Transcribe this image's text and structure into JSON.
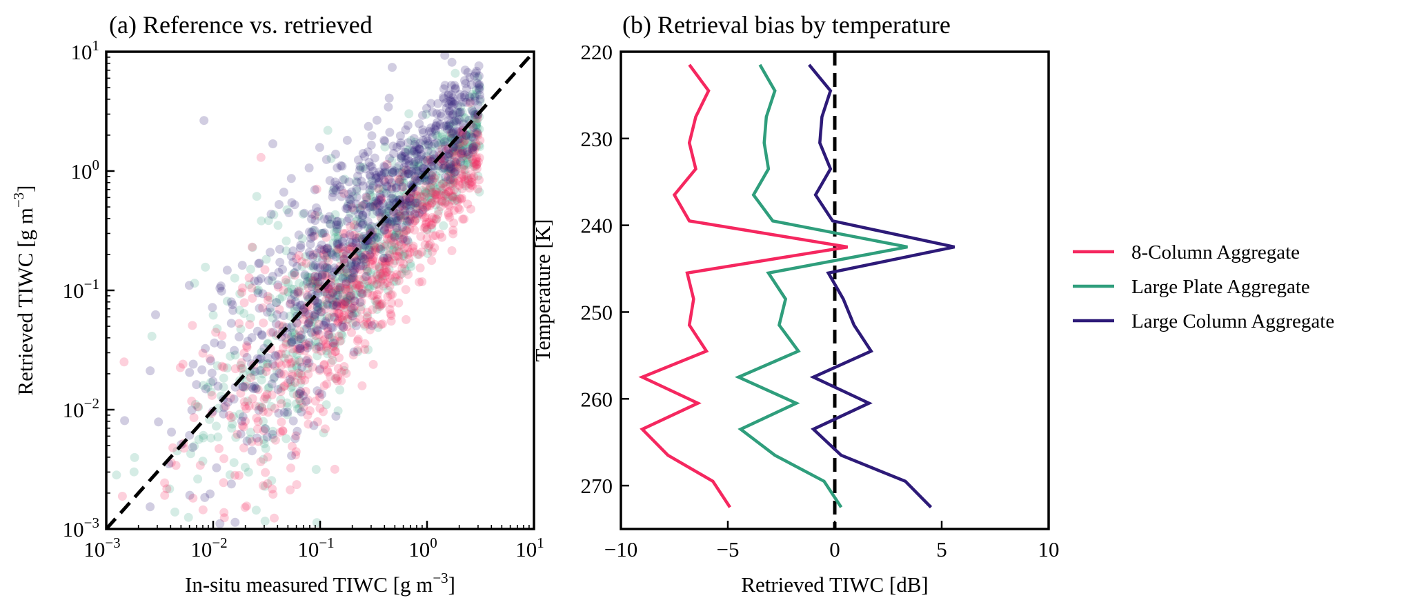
{
  "chart_data": [
    {
      "type": "scatter",
      "title": "(a) Reference vs. retrieved",
      "xlabel": {
        "text": "In-situ measured TIWC [g m",
        "sup": "−3",
        "close": "]"
      },
      "ylabel": {
        "text": "Retrieved TIWC [g m",
        "sup": "−3",
        "close": "]"
      },
      "xscale": "log",
      "yscale": "log",
      "xlim": [
        0.001,
        10
      ],
      "ylim": [
        0.001,
        10
      ],
      "xticks": [
        {
          "base": "10",
          "exp": "−3",
          "value": -3
        },
        {
          "base": "10",
          "exp": "−2",
          "value": -2
        },
        {
          "base": "10",
          "exp": "−1",
          "value": -1
        },
        {
          "base": "10",
          "exp": "0",
          "value": 0
        },
        {
          "base": "10",
          "exp": "1",
          "value": 1
        }
      ],
      "yticks": [
        {
          "base": "10",
          "exp": "−3",
          "value": -3
        },
        {
          "base": "10",
          "exp": "−2",
          "value": -2
        },
        {
          "base": "10",
          "exp": "−1",
          "value": -1
        },
        {
          "base": "10",
          "exp": "0",
          "value": 0
        },
        {
          "base": "10",
          "exp": "1",
          "value": 1
        }
      ],
      "reference_line": "1:1 dashed",
      "series": [
        {
          "name": "8-Column Aggregate",
          "color": "#f5275f",
          "log_bias": -0.35,
          "alpha": 0.22
        },
        {
          "name": "Large Plate Aggregate",
          "color": "#2f9e7c",
          "log_bias": -0.12,
          "alpha": 0.2
        },
        {
          "name": "Large Column Aggregate",
          "color": "#2d1a78",
          "log_bias": 0.15,
          "alpha": 0.22
        }
      ],
      "grid": false
    },
    {
      "type": "line",
      "title": "(b) Retrieval bias by temperature",
      "xlabel": "Retrieved TIWC [dB]",
      "ylabel": "Temperature [K]",
      "xlim": [
        -10,
        10
      ],
      "ylim": [
        275,
        220
      ],
      "y_inverted": true,
      "xticks": [
        "−10",
        "−5",
        "0",
        "5",
        "10"
      ],
      "xtick_values": [
        -10,
        -5,
        0,
        5,
        10
      ],
      "yticks": [
        "220",
        "230",
        "240",
        "250",
        "260",
        "270"
      ],
      "ytick_values": [
        220,
        230,
        240,
        250,
        260,
        270
      ],
      "vline": 0,
      "temperature": [
        221.5,
        224.5,
        227.5,
        230.5,
        233.5,
        236.5,
        239.5,
        242.5,
        245.5,
        248.5,
        251.5,
        254.5,
        257.5,
        260.5,
        263.5,
        266.5,
        269.5,
        272.5
      ],
      "series": [
        {
          "name": "8-Column Aggregate",
          "color": "#f5275f",
          "values": [
            -6.8,
            -5.9,
            -6.5,
            -6.8,
            -6.5,
            -7.5,
            -6.8,
            0.6,
            -6.9,
            -6.6,
            -6.8,
            -6.0,
            -9.0,
            -6.4,
            -9.0,
            -7.8,
            -5.7,
            -4.9
          ]
        },
        {
          "name": "Large Plate Aggregate",
          "color": "#2f9e7c",
          "values": [
            -3.5,
            -2.8,
            -3.2,
            -3.3,
            -3.1,
            -3.8,
            -2.9,
            3.4,
            -3.1,
            -2.3,
            -2.6,
            -1.7,
            -4.5,
            -1.8,
            -4.4,
            -2.8,
            -0.5,
            0.3
          ]
        },
        {
          "name": "Large Column Aggregate",
          "color": "#2d1a78",
          "values": [
            -1.2,
            -0.2,
            -0.6,
            -0.7,
            -0.2,
            -0.9,
            -0.1,
            5.6,
            -0.3,
            0.4,
            0.9,
            1.7,
            -1.0,
            1.6,
            -1.0,
            0.3,
            3.3,
            4.5
          ]
        }
      ],
      "grid": false
    }
  ],
  "legend": {
    "placement": "right-center",
    "entries": [
      {
        "label": "8-Column Aggregate",
        "color": "#f5275f"
      },
      {
        "label": "Large Plate Aggregate",
        "color": "#2f9e7c"
      },
      {
        "label": "Large Column Aggregate",
        "color": "#2d1a78"
      }
    ]
  }
}
